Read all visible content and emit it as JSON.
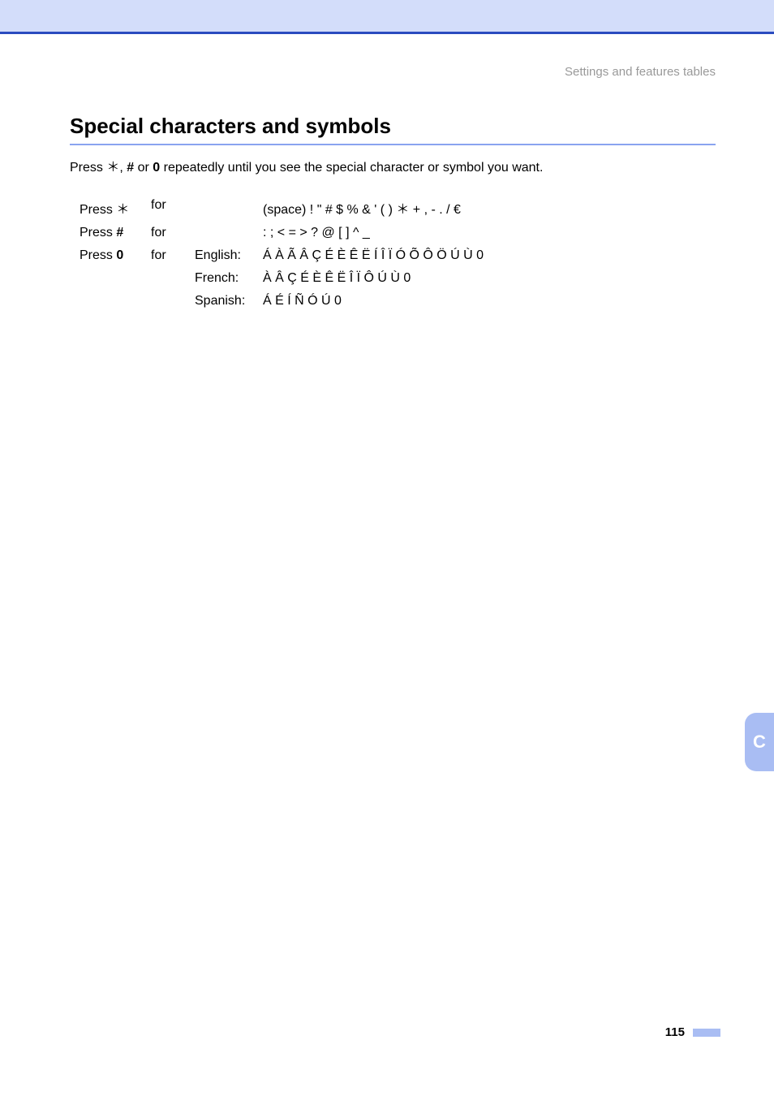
{
  "running_head": "Settings and features tables",
  "heading": "Special characters and symbols",
  "intro": {
    "pre": "Press ",
    "k1": "＊",
    "mid1": ", ",
    "k2": "#",
    "mid2": " or ",
    "k3": "0",
    "post": " repeatedly until you see the special character or symbol you want."
  },
  "rows": [
    {
      "press_prefix": "Press ",
      "key": "＊",
      "for": "for",
      "lang": "",
      "chars": "(space) ! \" # $ % & ' ( ) ＊ + , - . / €"
    },
    {
      "press_prefix": "Press ",
      "key": "#",
      "for": "for",
      "lang": "",
      "chars": ": ; < = > ? @ [ ] ^ _"
    },
    {
      "press_prefix": "Press ",
      "key": "0",
      "for": "for",
      "lang": "English:",
      "chars": "Á À Ã Â Ç É È Ê Ë Í Î Ï Ó Õ Ô Ö Ú Ù 0"
    },
    {
      "press_prefix": "",
      "key": "",
      "for": "",
      "lang": "French:",
      "chars": "À Â Ç É È Ê Ë Î Ï Ô Ú Ù 0"
    },
    {
      "press_prefix": "",
      "key": "",
      "for": "",
      "lang": "Spanish:",
      "chars": "Á É Í Ñ Ó Ú 0"
    }
  ],
  "side_tab": "C",
  "page_number": "115",
  "colors": {
    "top_bar_bg": "#d3ddfa",
    "top_bar_border": "#2a4bbf",
    "h2_rule": "#8aa4f0",
    "running_head": "#999999",
    "side_tab_bg": "#a9bdf3",
    "side_tab_text": "#ffffff",
    "page_num_bar": "#a9bdf3",
    "text": "#000000",
    "background": "#ffffff"
  },
  "typography": {
    "heading_fontsize_pt": 20,
    "body_fontsize_pt": 12,
    "running_head_fontsize_pt": 11,
    "side_tab_fontsize_pt": 16,
    "page_number_fontsize_pt": 11
  }
}
